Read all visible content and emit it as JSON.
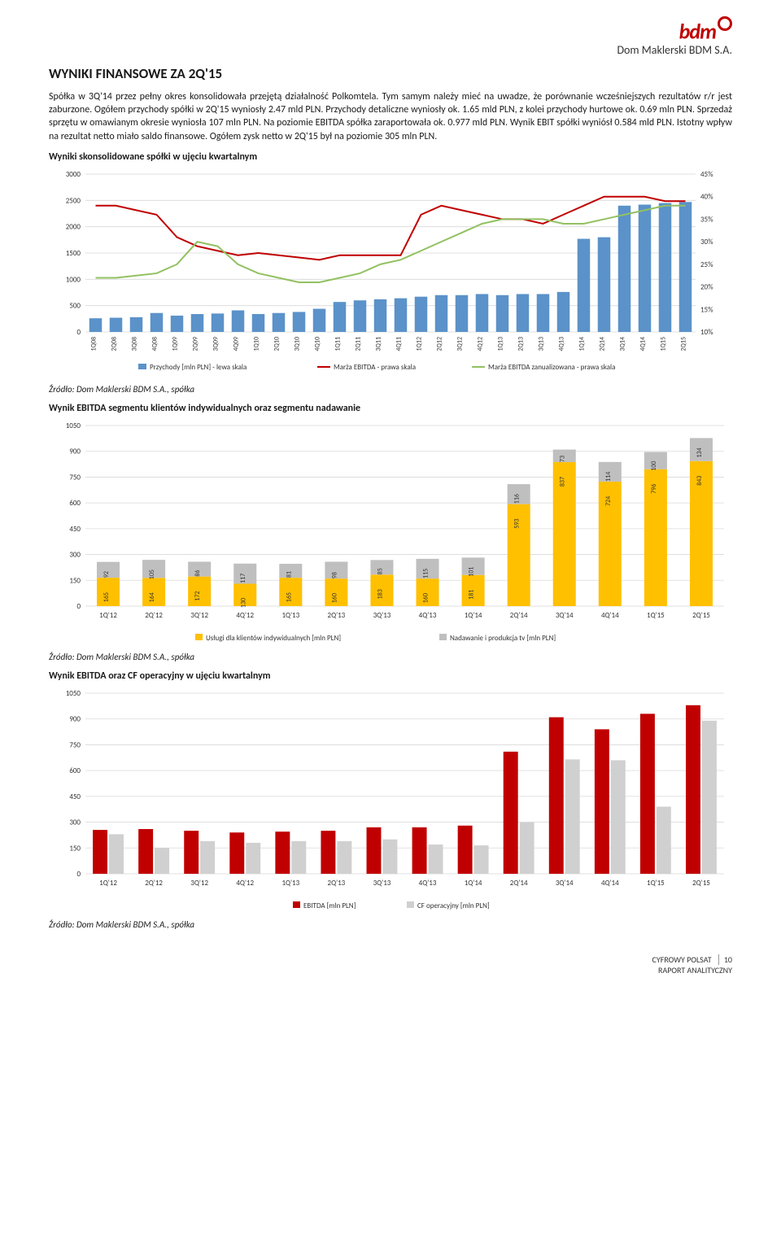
{
  "logo": {
    "text": "bdm",
    "sub": "Dom Maklerski BDM S.A."
  },
  "heading": "WYNIKI FINANSOWE ZA 2Q'15",
  "paragraph": "Spółka w 3Q'14 przez pełny okres konsolidowała przejętą działalność Polkomtela. Tym samym należy mieć na uwadze, że porównanie wcześniejszych rezultatów r/r jest zaburzone. Ogółem przychody spółki w 2Q'15 wyniosły 2.47 mld PLN. Przychody detaliczne wyniosły ok. 1.65 mld PLN, z kolei przychody hurtowe ok. 0.69 mln PLN. Sprzedaż sprzętu w omawianym okresie wyniosła 107 mln PLN. Na poziomie EBITDA spółka zaraportowała ok. 0.977 mld PLN. Wynik EBIT spółki wyniósł 0.584 mld PLN. Istotny wpływ na rezultat netto miało saldo finansowe. Ogółem zysk netto w 2Q'15 był na poziomie 305 mln PLN.",
  "chart1": {
    "title": "Wyniki skonsolidowane spółki w ujęciu kwartalnym",
    "y_left": {
      "min": 0,
      "max": 3000,
      "step": 500
    },
    "y_right": {
      "min": 10,
      "max": 45,
      "step": 5,
      "suffix": "%"
    },
    "labels": [
      "1Q08",
      "2Q08",
      "3Q08",
      "4Q08",
      "1Q09",
      "2Q09",
      "3Q09",
      "4Q09",
      "1Q10",
      "2Q10",
      "3Q10",
      "4Q10",
      "1Q11",
      "2Q11",
      "3Q11",
      "4Q11",
      "1Q12",
      "2Q12",
      "3Q12",
      "4Q12",
      "1Q13",
      "2Q13",
      "3Q13",
      "4Q13",
      "1Q14",
      "2Q14",
      "3Q14",
      "4Q14",
      "1Q15",
      "2Q15"
    ],
    "bars": [
      260,
      270,
      280,
      360,
      310,
      340,
      350,
      410,
      340,
      360,
      380,
      440,
      570,
      600,
      620,
      640,
      670,
      700,
      700,
      720,
      700,
      720,
      720,
      760,
      1770,
      1800,
      2400,
      2420,
      2450,
      2470
    ],
    "red": [
      38,
      38,
      37,
      36,
      31,
      29,
      28,
      27,
      27.5,
      27,
      26.5,
      26,
      27,
      27,
      27,
      27,
      36,
      38,
      37,
      36,
      35,
      35,
      34,
      36,
      38,
      40,
      40,
      40,
      39,
      39
    ],
    "green": [
      22,
      22,
      22.5,
      23,
      25,
      30,
      29,
      25,
      23,
      22,
      21,
      21,
      22,
      23,
      25,
      26,
      28,
      30,
      32,
      34,
      35,
      35,
      35,
      34,
      34,
      35,
      36,
      37,
      38,
      38
    ],
    "legend": {
      "l1": "Przychody [mln PLN] - lewa skala",
      "l2": "Marża EBITDA - prawa skala",
      "l3": "Marża EBITDA zanualizowana - prawa skala"
    },
    "bar_color": "#5b92c9",
    "red_color": "#c00000",
    "green_color": "#92c161"
  },
  "source": "Źródło: Dom Maklerski BDM S.A., spółka",
  "source1": "Źródło: Dom Maklerski BDM S.A., spółka",
  "chart2": {
    "title": "Wynik EBITDA segmentu klientów indywidualnych oraz segmentu nadawanie",
    "y": {
      "min": 0,
      "max": 1050,
      "step": 150
    },
    "labels": [
      "1Q'12",
      "2Q'12",
      "3Q'12",
      "4Q'12",
      "1Q'13",
      "2Q'13",
      "3Q'13",
      "4Q'13",
      "1Q'14",
      "2Q'14",
      "3Q'14",
      "4Q'14",
      "1Q'15",
      "2Q'15"
    ],
    "yellow": [
      165,
      164,
      172,
      130,
      165,
      160,
      183,
      160,
      181,
      593,
      837,
      724,
      796,
      843
    ],
    "gray": [
      92,
      105,
      86,
      117,
      81,
      98,
      85,
      115,
      101,
      116,
      73,
      114,
      100,
      134
    ],
    "legend": {
      "l1": "Usługi dla klientów indywidualnych [mln PLN]",
      "l2": "Nadawanie i produkcja tv [mln PLN]"
    },
    "yellow_color": "#ffc000",
    "gray_color": "#bfbfbf"
  },
  "chart3": {
    "title": "Wynik EBITDA oraz CF operacyjny w ujęciu kwartalnym",
    "y": {
      "min": 0,
      "max": 1050,
      "step": 150
    },
    "labels": [
      "1Q'12",
      "2Q'12",
      "3Q'12",
      "4Q'12",
      "1Q'13",
      "2Q'13",
      "3Q'13",
      "4Q'13",
      "1Q'14",
      "2Q'14",
      "3Q'14",
      "4Q'14",
      "1Q'15",
      "2Q'15"
    ],
    "red": [
      255,
      260,
      250,
      240,
      245,
      250,
      270,
      270,
      280,
      710,
      910,
      840,
      930,
      980
    ],
    "gray": [
      230,
      150,
      190,
      180,
      190,
      190,
      200,
      170,
      165,
      300,
      665,
      660,
      390,
      890
    ],
    "legend": {
      "l1": "EBITDA [mln PLN]",
      "l2": "CF operacyjny [mln PLN]"
    },
    "red_color": "#c00000",
    "gray_color": "#d0d0d0"
  },
  "footer": {
    "l1": "CYFROWY POLSAT",
    "l2": "RAPORT ANALITYCZNY",
    "page": "10"
  }
}
